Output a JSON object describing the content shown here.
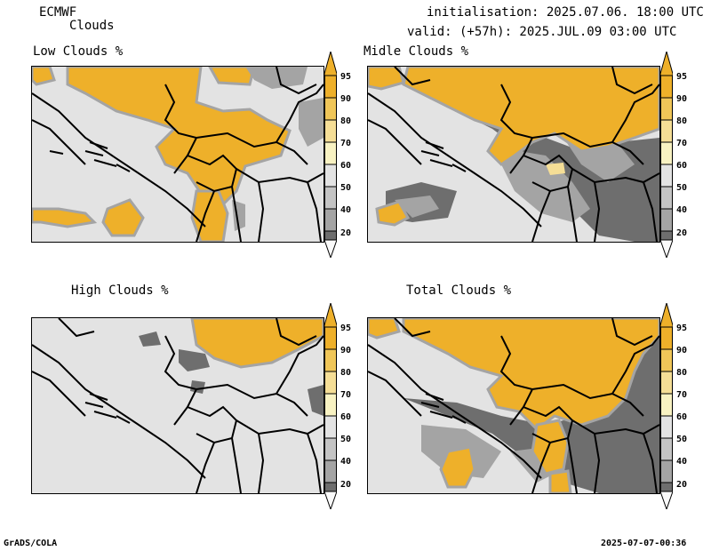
{
  "header": {
    "model": "ECMWF",
    "product": "Clouds",
    "init_line": "initialisation: 2025.07.06. 18:00 UTC",
    "valid_line": "valid: (+57h): 2025.JUL.09 03:00 UTC"
  },
  "panels": [
    {
      "id": "low",
      "title": "Low Clouds %"
    },
    {
      "id": "mid",
      "title": "Midle Clouds %"
    },
    {
      "id": "high",
      "title": "High Clouds %"
    },
    {
      "id": "total",
      "title": "Total Clouds %"
    }
  ],
  "colorbar": {
    "levels": [
      "95",
      "90",
      "80",
      "70",
      "60",
      "50",
      "40",
      "20"
    ],
    "colors": {
      "top": "#eeb02a",
      "c95": "#eeb02a",
      "c90": "#f0c658",
      "c80": "#f5de96",
      "c70": "#f8f2c2",
      "c60": "#e3e3e3",
      "c50": "#c4c4c4",
      "c40": "#a4a4a4",
      "c20": "#6e6e6e",
      "bottom": "#fafafa"
    }
  },
  "footer": {
    "left": "GrADS/COLA",
    "right": "2025-07-07-00:36"
  }
}
